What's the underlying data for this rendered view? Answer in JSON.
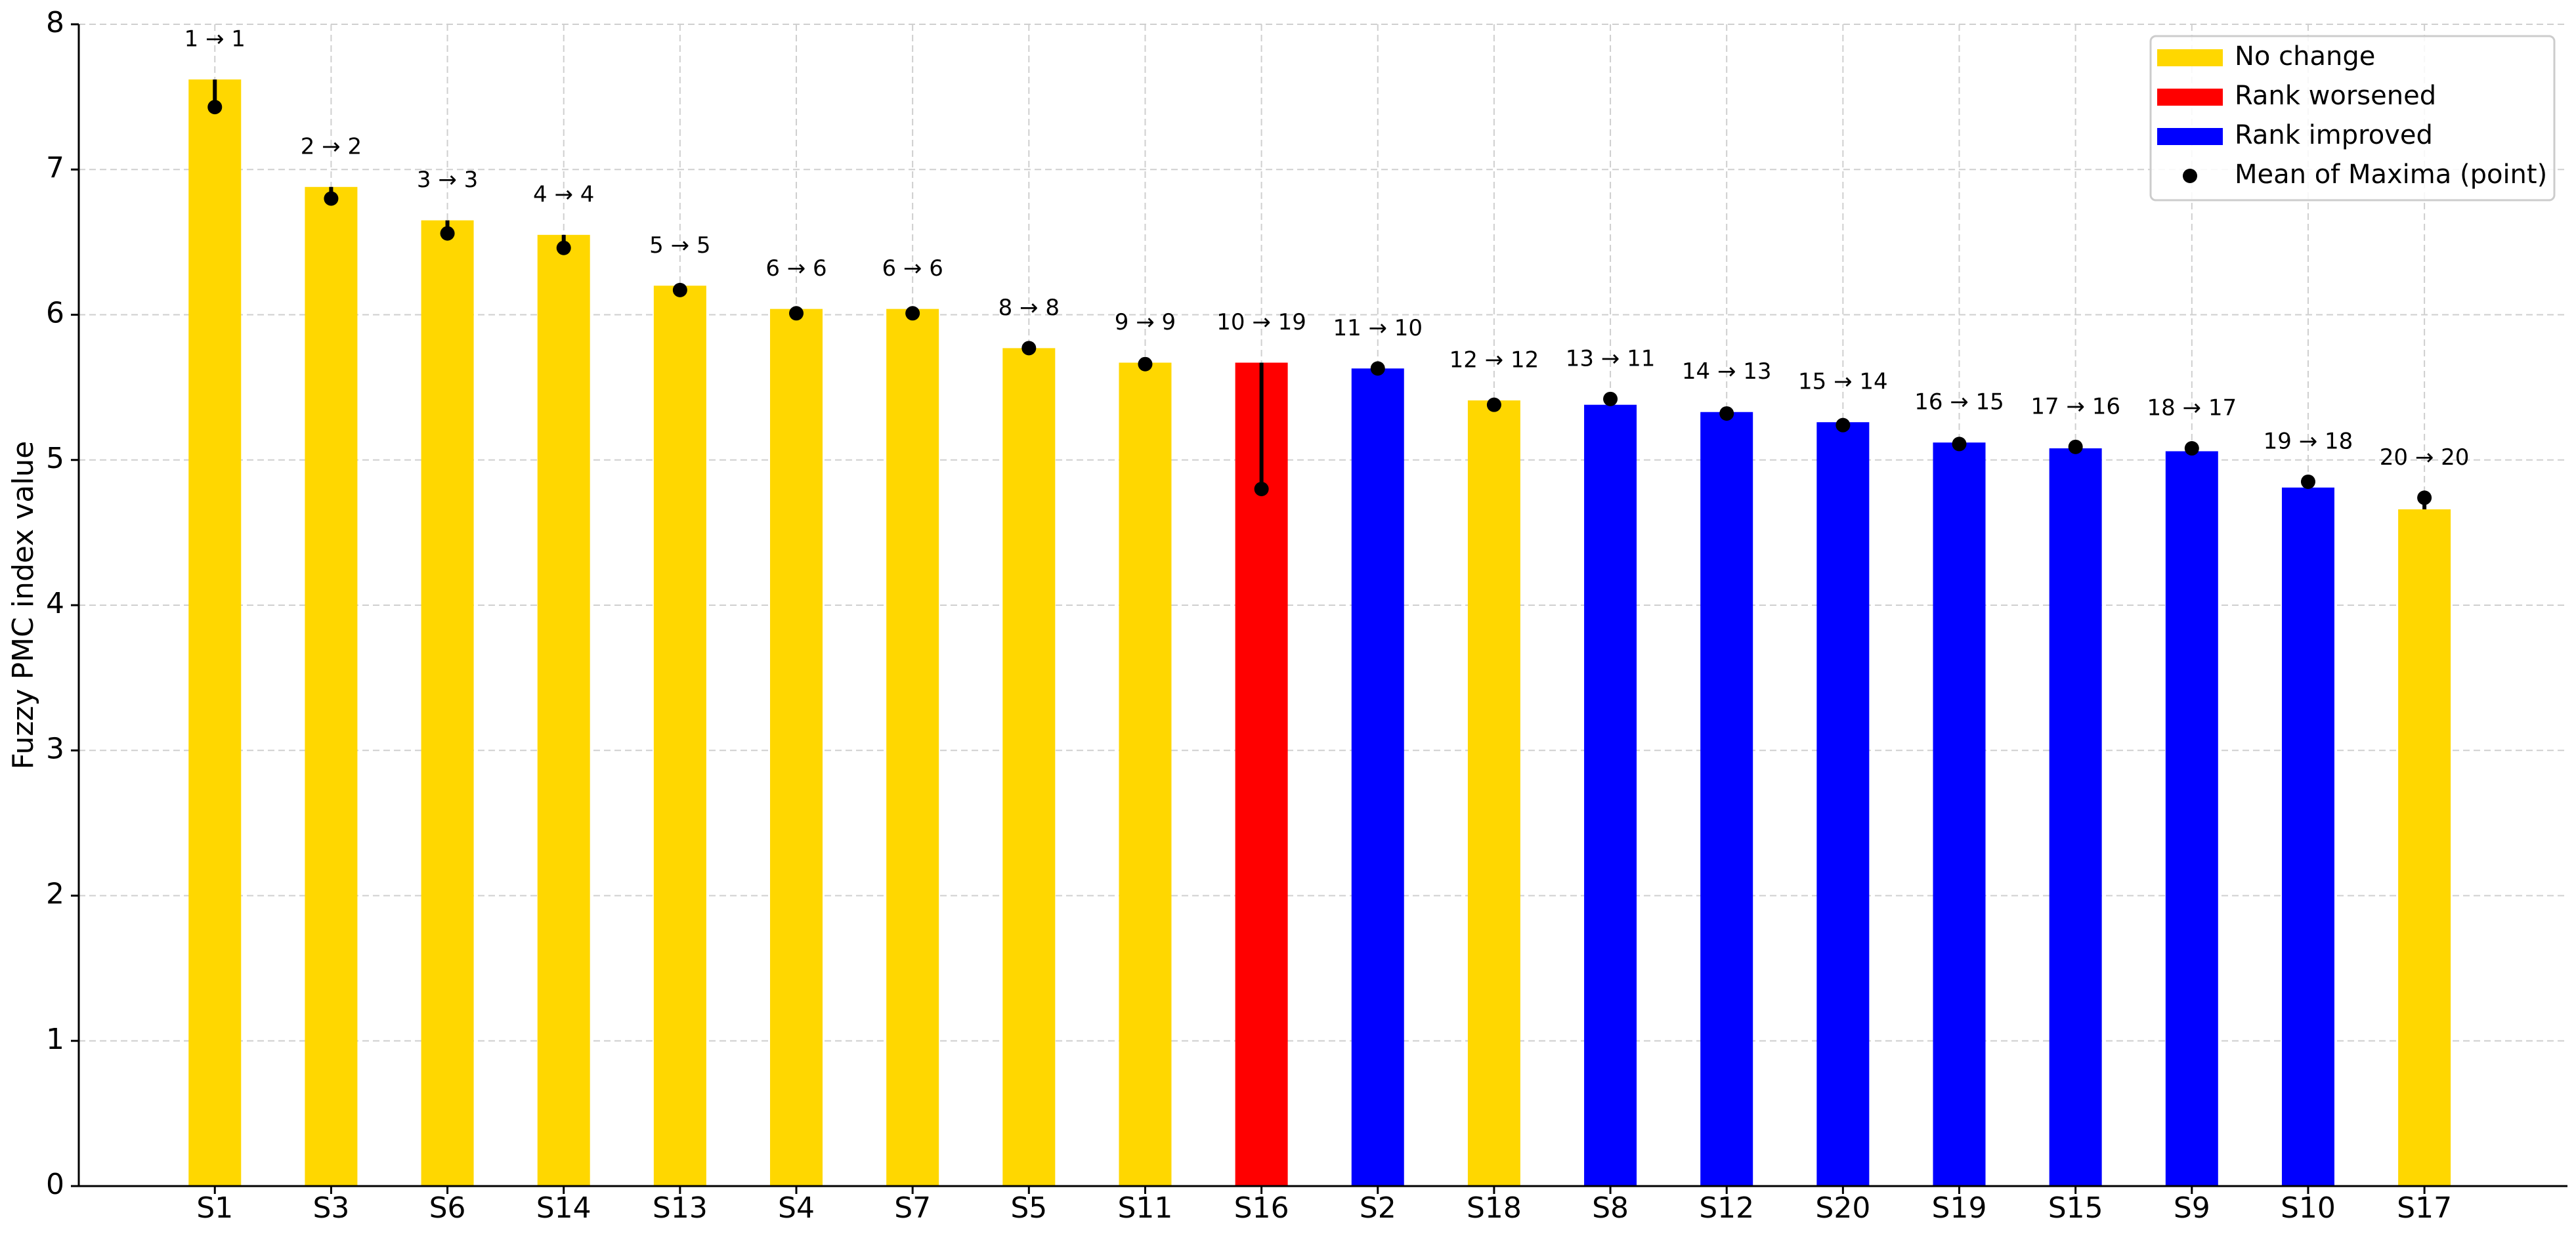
{
  "chart_data": {
    "type": "bar",
    "y_label": "Fuzzy PMC index value",
    "categories": [
      "S1",
      "S3",
      "S6",
      "S14",
      "S13",
      "S4",
      "S7",
      "S5",
      "S11",
      "S16",
      "S2",
      "S18",
      "S8",
      "S12",
      "S20",
      "S19",
      "S15",
      "S9",
      "S10",
      "S17"
    ],
    "values": [
      7.62,
      6.88,
      6.65,
      6.55,
      6.2,
      6.04,
      6.04,
      5.77,
      5.67,
      5.67,
      5.63,
      5.41,
      5.38,
      5.33,
      5.26,
      5.12,
      5.08,
      5.06,
      4.81,
      4.66
    ],
    "mean_of_maxima": [
      7.43,
      6.8,
      6.56,
      6.46,
      6.17,
      6.01,
      6.01,
      5.77,
      5.66,
      4.8,
      5.63,
      5.38,
      5.42,
      5.32,
      5.24,
      5.11,
      5.09,
      5.08,
      4.85,
      4.74
    ],
    "rank_labels": [
      "1 → 1",
      "2 → 2",
      "3 → 3",
      "4 → 4",
      "5 → 5",
      "6 → 6",
      "6 → 6",
      "8 → 8",
      "9 → 9",
      "10 → 19",
      "11 → 10",
      "12 → 12",
      "13 → 11",
      "14 → 13",
      "15 → 14",
      "16 → 15",
      "17 → 16",
      "18 → 17",
      "19 → 18",
      "20 → 20"
    ],
    "colors": [
      "#ffd700",
      "#ffd700",
      "#ffd700",
      "#ffd700",
      "#ffd700",
      "#ffd700",
      "#ffd700",
      "#ffd700",
      "#ffd700",
      "#ff0000",
      "#0000ff",
      "#ffd700",
      "#0000ff",
      "#0000ff",
      "#0000ff",
      "#0000ff",
      "#0000ff",
      "#0000ff",
      "#0000ff",
      "#ffd700"
    ],
    "legend": [
      {
        "name": "No change",
        "color": "#ffd700"
      },
      {
        "name": "Rank worsened",
        "color": "#ff0000"
      },
      {
        "name": "Rank improved",
        "color": "#0000ff"
      },
      {
        "name": "Mean of Maxima (point)",
        "color": "#000000"
      }
    ],
    "point_color": "#000000",
    "ylim": [
      0,
      8
    ],
    "yticks": [
      0,
      1,
      2,
      3,
      4,
      5,
      6,
      7,
      8
    ],
    "grid": true
  }
}
